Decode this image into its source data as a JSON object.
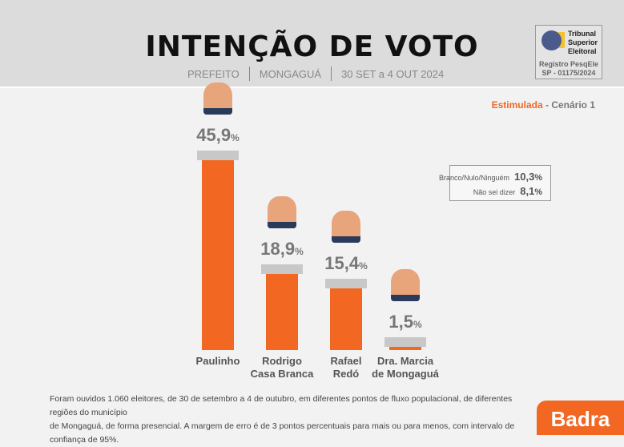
{
  "header": {
    "title": "INTENÇÃO DE VOTO",
    "office": "PREFEITO",
    "city": "MONGAGUÁ",
    "period": "30 SET a 4 OUT 2024"
  },
  "tse": {
    "name_lines": [
      "Tribunal",
      "Superior",
      "Eleitoral"
    ],
    "registry_label": "Registro PesqEle",
    "registry_number": "SP - 01175/2024"
  },
  "scenario": {
    "type": "Estimulada",
    "separator": " - ",
    "name": "Cenário 1"
  },
  "colors": {
    "accent": "#f26722",
    "cap": "#c8c8c8"
  },
  "chart_data": {
    "type": "bar",
    "categories": [
      "Paulinho",
      "Rodrigo Casa Branca",
      "Rafael Redó",
      "Dra. Marcia de Mongaguá"
    ],
    "label_lines": [
      [
        "Paulinho"
      ],
      [
        "Rodrigo",
        "Casa Branca"
      ],
      [
        "Rafael",
        "Redó"
      ],
      [
        "Dra. Marcia",
        "de Mongaguá"
      ]
    ],
    "values": [
      45.9,
      18.9,
      15.4,
      1.5
    ],
    "value_labels": [
      "45,9",
      "18,9",
      "15,4",
      "1,5"
    ],
    "unit": "%",
    "ylim": [
      0,
      50
    ],
    "grid": false
  },
  "others": [
    {
      "label": "Branco/Nulo/Ninguém",
      "value": "10,3",
      "unit": "%"
    },
    {
      "label": "Não sei dizer",
      "value": "8,1",
      "unit": "%"
    }
  ],
  "footnote": [
    "Foram ouvidos 1.060 eleitores, de 30 de setembro a 4 de outubro, em diferentes pontos de fluxo populacional, de diferentes regiões do município",
    "de Mongaguá, de forma presencial. A margem de erro é de 3 pontos percentuais para mais ou para menos, com intervalo de confiança de 95%."
  ],
  "brand": "Badra"
}
